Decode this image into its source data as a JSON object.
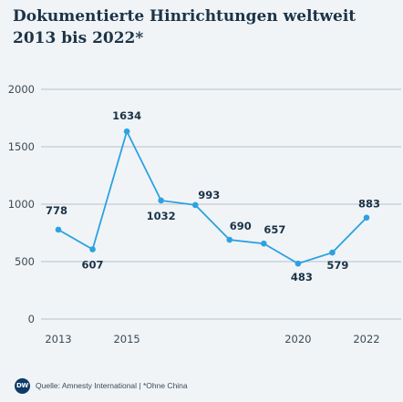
{
  "title": "Dokumentierte Hinrichtungen weltweit 2013 bis 2022*",
  "footer": {
    "logo": "DW",
    "source": "Quelle: Amnesty International | *Ohne China"
  },
  "colors": {
    "background": "#f0f4f7",
    "line": "#2ea1e0",
    "text": "#1c3347",
    "logo": "#0d3b66"
  },
  "chart_data": {
    "type": "line",
    "title": "Dokumentierte Hinrichtungen weltweit 2013 bis 2022*",
    "xlabel": "",
    "ylabel": "",
    "x": [
      2013,
      2014,
      2015,
      2016,
      2017,
      2018,
      2019,
      2020,
      2021,
      2022
    ],
    "values": [
      778,
      607,
      1634,
      1032,
      993,
      690,
      657,
      483,
      579,
      883
    ],
    "xticks": [
      2013,
      2015,
      2020,
      2022
    ],
    "yticks": [
      0,
      500,
      1000,
      1500,
      2000
    ],
    "ylim": [
      0,
      2000
    ],
    "grid": "horizontal",
    "legend": "none"
  }
}
